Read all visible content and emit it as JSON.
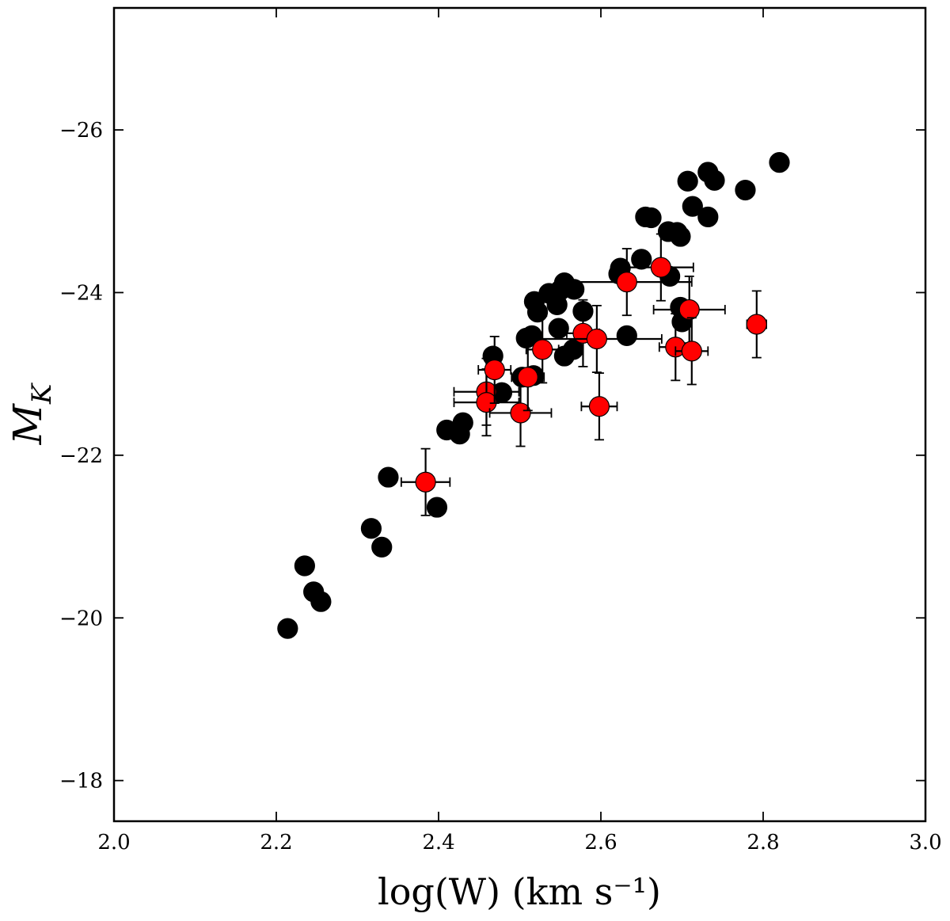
{
  "chart_data": {
    "type": "scatter",
    "xlabel": "log(W)  (km s⁻¹)",
    "ylabel": "M_K",
    "xlim": [
      2.0,
      3.0
    ],
    "ylim": [
      -17.5,
      -27.5
    ],
    "x_ticks": [
      "2.0",
      "2.2",
      "2.4",
      "2.6",
      "2.8",
      "3.0"
    ],
    "x_tick_values": [
      2.0,
      2.2,
      2.4,
      2.6,
      2.8,
      3.0
    ],
    "y_ticks": [
      "−18",
      "−20",
      "−22",
      "−24",
      "−26"
    ],
    "y_tick_values": [
      -18,
      -20,
      -22,
      -24,
      -26
    ],
    "grid": false,
    "series": [
      {
        "color": "#000000",
        "points": [
          {
            "x": 2.214,
            "y": -19.87
          },
          {
            "x": 2.235,
            "y": -20.64
          },
          {
            "x": 2.246,
            "y": -20.32
          },
          {
            "x": 2.255,
            "y": -20.2
          },
          {
            "x": 2.317,
            "y": -21.1
          },
          {
            "x": 2.33,
            "y": -20.87
          },
          {
            "x": 2.338,
            "y": -21.73
          },
          {
            "x": 2.398,
            "y": -21.36
          },
          {
            "x": 2.41,
            "y": -22.31
          },
          {
            "x": 2.426,
            "y": -22.26
          },
          {
            "x": 2.43,
            "y": -22.4
          },
          {
            "x": 2.467,
            "y": -23.22
          },
          {
            "x": 2.478,
            "y": -22.77
          },
          {
            "x": 2.503,
            "y": -22.96
          },
          {
            "x": 2.508,
            "y": -23.44
          },
          {
            "x": 2.515,
            "y": -23.47
          },
          {
            "x": 2.517,
            "y": -22.98
          },
          {
            "x": 2.518,
            "y": -23.89
          },
          {
            "x": 2.522,
            "y": -23.76
          },
          {
            "x": 2.536,
            "y": -23.99
          },
          {
            "x": 2.546,
            "y": -23.85
          },
          {
            "x": 2.548,
            "y": -23.56
          },
          {
            "x": 2.55,
            "y": -24.03
          },
          {
            "x": 2.555,
            "y": -24.12
          },
          {
            "x": 2.555,
            "y": -23.22
          },
          {
            "x": 2.566,
            "y": -23.3
          },
          {
            "x": 2.567,
            "y": -24.04
          },
          {
            "x": 2.578,
            "y": -23.77
          },
          {
            "x": 2.622,
            "y": -24.23
          },
          {
            "x": 2.624,
            "y": -24.3
          },
          {
            "x": 2.632,
            "y": -23.47
          },
          {
            "x": 2.65,
            "y": -24.41
          },
          {
            "x": 2.655,
            "y": -24.93
          },
          {
            "x": 2.662,
            "y": -24.92
          },
          {
            "x": 2.683,
            "y": -24.75
          },
          {
            "x": 2.685,
            "y": -24.2
          },
          {
            "x": 2.694,
            "y": -24.74
          },
          {
            "x": 2.698,
            "y": -24.69
          },
          {
            "x": 2.698,
            "y": -23.82
          },
          {
            "x": 2.7,
            "y": -23.64
          },
          {
            "x": 2.707,
            "y": -25.37
          },
          {
            "x": 2.713,
            "y": -25.06
          },
          {
            "x": 2.732,
            "y": -24.93
          },
          {
            "x": 2.732,
            "y": -25.48
          },
          {
            "x": 2.74,
            "y": -25.38
          },
          {
            "x": 2.778,
            "y": -25.26
          },
          {
            "x": 2.82,
            "y": -25.6
          }
        ]
      },
      {
        "color": "#ff0000",
        "points": [
          {
            "x": 2.384,
            "y": -21.67,
            "xerr": 0.03,
            "yerr": 0.41
          },
          {
            "x": 2.459,
            "y": -22.78,
            "xerr": 0.04,
            "yerr": 0.41
          },
          {
            "x": 2.459,
            "y": -22.65,
            "xerr": 0.04,
            "yerr": 0.41
          },
          {
            "x": 2.469,
            "y": -23.05,
            "xerr": 0.02,
            "yerr": 0.41
          },
          {
            "x": 2.501,
            "y": -22.52,
            "xerr": 0.038,
            "yerr": 0.41
          },
          {
            "x": 2.51,
            "y": -22.96,
            "xerr": 0.02,
            "yerr": 0.41
          },
          {
            "x": 2.528,
            "y": -23.3,
            "xerr": 0.02,
            "yerr": 0.41
          },
          {
            "x": 2.578,
            "y": -23.5,
            "xerr": 0.02,
            "yerr": 0.41
          },
          {
            "x": 2.595,
            "y": -23.43,
            "xerr": 0.08,
            "yerr": 0.41
          },
          {
            "x": 2.598,
            "y": -22.6,
            "xerr": 0.022,
            "yerr": 0.41
          },
          {
            "x": 2.632,
            "y": -24.13,
            "xerr": 0.08,
            "yerr": 0.41
          },
          {
            "x": 2.674,
            "y": -24.31,
            "xerr": 0.04,
            "yerr": 0.41
          },
          {
            "x": 2.692,
            "y": -23.33,
            "xerr": 0.02,
            "yerr": 0.41
          },
          {
            "x": 2.709,
            "y": -23.79,
            "xerr": 0.044,
            "yerr": 0.41
          },
          {
            "x": 2.712,
            "y": -23.28,
            "xerr": 0.02,
            "yerr": 0.41
          },
          {
            "x": 2.792,
            "y": -23.61,
            "xerr": 0.012,
            "yerr": 0.41
          }
        ]
      }
    ]
  }
}
